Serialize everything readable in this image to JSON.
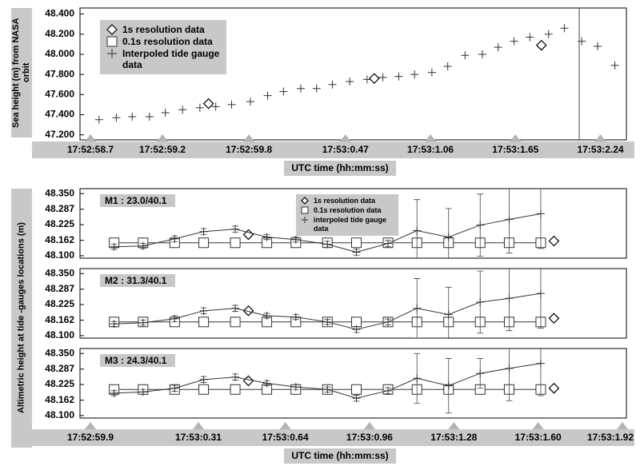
{
  "chart_data": [
    {
      "type": "scatter",
      "ylabel": "Sea height (m) from NASA orbit",
      "xlabel": "UTC time (hh:mm:ss)",
      "xlim": [
        58.7,
        62.42
      ],
      "xticks": [
        {
          "value": 58.7,
          "label": "17:52:58.7"
        },
        {
          "value": 59.2,
          "label": "17:52:59.2"
        },
        {
          "value": 59.8,
          "label": "17:52:59.8"
        },
        {
          "value": 60.47,
          "label": "17:53:0.47"
        },
        {
          "value": 61.06,
          "label": "17:53:1.06"
        },
        {
          "value": 61.65,
          "label": "17:53:1.65"
        },
        {
          "value": 62.24,
          "label": "17:53:2.24"
        }
      ],
      "ylim": [
        47.15,
        48.46
      ],
      "yticks": [
        {
          "value": 47.2,
          "label": "47.200"
        },
        {
          "value": 47.4,
          "label": "47.400"
        },
        {
          "value": 47.6,
          "label": "47.600"
        },
        {
          "value": 47.8,
          "label": "47.800"
        },
        {
          "value": 48.0,
          "label": "48.000"
        },
        {
          "value": 48.2,
          "label": "48.200"
        },
        {
          "value": 48.4,
          "label": "48.400"
        }
      ],
      "series": [
        {
          "name": "1s resolution data",
          "marker": "diamond",
          "x": [
            59.52,
            60.67,
            61.83
          ],
          "values": [
            47.51,
            47.76,
            48.09
          ]
        },
        {
          "name": "0.1s resolution data",
          "marker": "square",
          "x": [],
          "values": []
        },
        {
          "name": "Interpoled tide gauge data",
          "marker": "plus",
          "x": [
            58.76,
            58.88,
            58.99,
            59.11,
            59.22,
            59.34,
            59.46,
            59.57,
            59.68,
            59.81,
            59.93,
            60.04,
            60.16,
            60.27,
            60.38,
            60.5,
            60.62,
            60.73,
            60.84,
            60.95,
            61.07,
            61.18,
            61.3,
            61.42,
            61.53,
            61.64,
            61.75,
            61.88,
            61.99,
            62.11,
            62.22,
            62.34
          ],
          "values": [
            47.35,
            47.37,
            47.38,
            47.38,
            47.42,
            47.45,
            47.47,
            47.48,
            47.5,
            47.53,
            47.59,
            47.63,
            47.66,
            47.66,
            47.7,
            47.73,
            47.75,
            47.77,
            47.78,
            47.8,
            47.82,
            47.88,
            47.99,
            48.0,
            48.07,
            48.13,
            48.17,
            48.2,
            48.26,
            48.13,
            48.08,
            47.89
          ]
        }
      ]
    },
    {
      "type": "scatter",
      "ylabel": "Altimetric height at tide -gauges locations (m)",
      "xlabel": "UTC time (hh:mm:ss)",
      "xlim": [
        59.9,
        61.92
      ],
      "xticks": [
        {
          "value": 59.9,
          "label": "17:52:59.9"
        },
        {
          "value": 60.31,
          "label": "17:53:0.31"
        },
        {
          "value": 60.64,
          "label": "17:53:0.64"
        },
        {
          "value": 60.96,
          "label": "17:53:0.96"
        },
        {
          "value": 61.28,
          "label": "17:53:1.28"
        },
        {
          "value": 61.6,
          "label": "17:53:1.60"
        },
        {
          "value": 61.92,
          "label": "17:53:1.92"
        }
      ],
      "ylim": [
        48.09,
        48.37
      ],
      "yticks": [
        {
          "value": 48.1,
          "label": "48.100"
        },
        48.162,
        48.225,
        48.287,
        {
          "value": 48.35,
          "label": "48.350"
        }
      ],
      "series": [
        {
          "name": "1s resolution data",
          "marker": "diamond",
          "line": false
        },
        {
          "name": "0.1s resolution data",
          "marker": "square",
          "line": true
        },
        {
          "name": "interpoled tide gauge data",
          "marker": "plus",
          "line": true
        }
      ],
      "panels": [
        {
          "label": "M1 : 23.0/40.1",
          "series": [
            {
              "x": [
                60.5,
                61.66
              ],
              "values": [
                48.185,
                48.159
              ]
            },
            {
              "x": [
                59.99,
                60.1,
                60.22,
                60.33,
                60.45,
                60.57,
                60.68,
                60.8,
                60.91,
                61.03,
                61.14,
                61.26,
                61.38,
                61.49,
                61.61
              ],
              "values": [
                48.152,
                48.152,
                48.152,
                48.152,
                48.152,
                48.152,
                48.152,
                48.152,
                48.152,
                48.152,
                48.152,
                48.152,
                48.152,
                48.152,
                48.152
              ]
            },
            {
              "x": [
                59.99,
                60.1,
                60.22,
                60.33,
                60.45,
                60.57,
                60.68,
                60.8,
                60.91,
                61.03,
                61.14,
                61.26,
                61.38,
                61.49,
                61.61
              ],
              "values": [
                48.136,
                48.139,
                48.168,
                48.197,
                48.207,
                48.175,
                48.165,
                48.146,
                48.114,
                48.149,
                48.201,
                48.175,
                48.223,
                48.246,
                48.269
              ],
              "errors": [
                0.01,
                0.01,
                0.012,
                0.012,
                0.012,
                0.01,
                0.01,
                0.012,
                0.012,
                0.012,
                0.125,
                0.115,
                0.125,
                0.135,
                0.14
              ]
            }
          ]
        },
        {
          "label": "M2 : 31.3/40.1",
          "series": [
            {
              "x": [
                60.5,
                61.66
              ],
              "values": [
                48.2,
                48.17
              ]
            },
            {
              "x": [
                59.99,
                60.1,
                60.22,
                60.33,
                60.45,
                60.57,
                60.68,
                60.8,
                60.91,
                61.03,
                61.14,
                61.26,
                61.38,
                61.49,
                61.61
              ],
              "values": [
                48.155,
                48.155,
                48.155,
                48.155,
                48.155,
                48.155,
                48.155,
                48.155,
                48.155,
                48.155,
                48.155,
                48.155,
                48.155,
                48.155,
                48.155
              ]
            },
            {
              "x": [
                59.99,
                60.1,
                60.22,
                60.33,
                60.45,
                60.57,
                60.68,
                60.8,
                60.91,
                61.03,
                61.14,
                61.26,
                61.38,
                61.49,
                61.61
              ],
              "values": [
                48.147,
                48.152,
                48.168,
                48.2,
                48.21,
                48.18,
                48.175,
                48.155,
                48.125,
                48.155,
                48.21,
                48.185,
                48.235,
                48.25,
                48.27
              ],
              "errors": [
                0.01,
                0.01,
                0.012,
                0.012,
                0.012,
                0.01,
                0.01,
                0.01,
                0.012,
                0.012,
                0.12,
                0.11,
                0.125,
                0.13,
                0.14
              ]
            }
          ]
        },
        {
          "label": "M3 : 24.3/40.1",
          "series": [
            {
              "x": [
                60.5,
                61.66
              ],
              "values": [
                48.24,
                48.21
              ]
            },
            {
              "x": [
                59.99,
                60.1,
                60.22,
                60.33,
                60.45,
                60.57,
                60.68,
                60.8,
                60.91,
                61.03,
                61.14,
                61.26,
                61.38,
                61.49,
                61.61
              ],
              "values": [
                48.205,
                48.205,
                48.205,
                48.205,
                48.205,
                48.205,
                48.205,
                48.205,
                48.205,
                48.205,
                48.205,
                48.205,
                48.205,
                48.205,
                48.205
              ]
            },
            {
              "x": [
                59.99,
                60.1,
                60.22,
                60.33,
                60.45,
                60.57,
                60.68,
                60.8,
                60.91,
                61.03,
                61.14,
                61.26,
                61.38,
                61.49,
                61.61
              ],
              "values": [
                48.19,
                48.195,
                48.21,
                48.245,
                48.255,
                48.23,
                48.215,
                48.205,
                48.17,
                48.2,
                48.25,
                48.22,
                48.27,
                48.29,
                48.31
              ],
              "errors": [
                0.01,
                0.01,
                0.012,
                0.012,
                0.012,
                0.01,
                0.01,
                0.01,
                0.012,
                0.012,
                0.1,
                0.11,
                0.06,
                0.13,
                0.13
              ]
            }
          ]
        }
      ]
    }
  ]
}
